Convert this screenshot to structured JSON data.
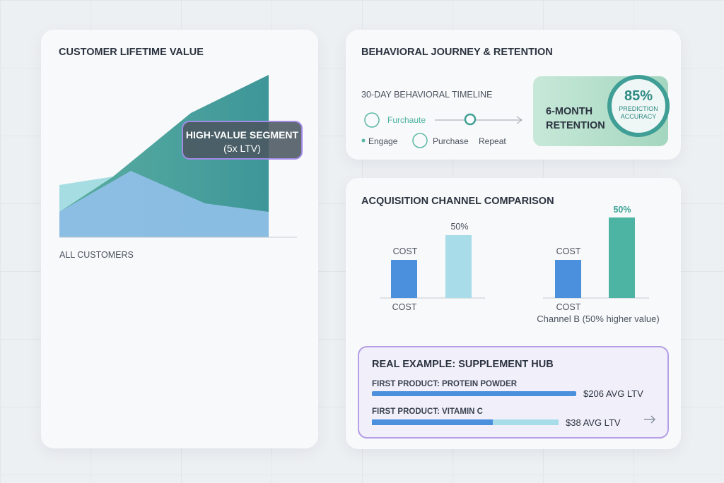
{
  "ltv_card": {
    "title": "CUSTOMER LIFETIME VALUE",
    "tooltip": [
      "HIGH-VALUE SEGMENT",
      "(5x LTV)"
    ],
    "baseline_label": "ALL CUSTOMERS"
  },
  "journey_card": {
    "title": "BEHAVIORAL JOURNEY & RETENTION",
    "timeline_title": "30-DAY BEHAVIORAL TIMELINE",
    "step_top": "Furchaute",
    "steps": [
      "Engage",
      "Purchase",
      "Repeat"
    ],
    "retention": [
      "6-MONTH",
      "RETENTION"
    ],
    "accuracy": {
      "value": "85%",
      "label": [
        "PREDICTION",
        "ACCURACY"
      ]
    }
  },
  "acquisition_card": {
    "title": "ACQUISITION CHANNEL COMPARISON",
    "groups": [
      {
        "bars": [
          {
            "top_label": "COST"
          },
          {
            "top_label": "50%"
          }
        ],
        "axis_label": "COST"
      },
      {
        "bars": [
          {
            "top_label": "COST"
          },
          {
            "top_label": "50%"
          }
        ],
        "axis_label": "COST",
        "caption": "Channel B (50% higher value)"
      }
    ]
  },
  "example": {
    "title": "REAL EXAMPLE: SUPPLEMENT HUB",
    "rows": [
      {
        "label": "FIRST PRODUCT: PROTEIN POWDER",
        "value": "$206 AVG LTV"
      },
      {
        "label": "FIRST PRODUCT: VITAMIN C",
        "value": "$38 AVG LTV"
      }
    ]
  }
}
